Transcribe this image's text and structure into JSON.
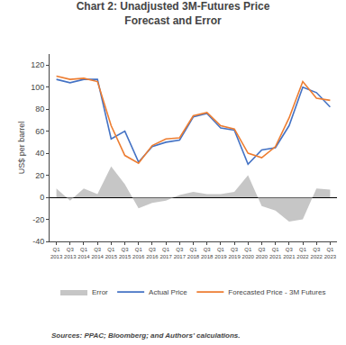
{
  "chart_data": {
    "type": "line",
    "title": "Chart 2: Unadjusted 3M-Futures Price\nForecast and Error",
    "ylabel": "US$ per barrel",
    "annotation": "Sources: PPAC; Bloomberg; and Authors' calculations.",
    "categories": [
      "Q1\n2013",
      "Q3\n2013",
      "Q1\n2014",
      "Q3\n2014",
      "Q1\n2015",
      "Q3\n2015",
      "Q1\n2016",
      "Q3\n2016",
      "Q1\n2017",
      "Q3\n2017",
      "Q1\n2018",
      "Q3\n2018",
      "Q1\n2019",
      "Q3\n2019",
      "Q1\n2020",
      "Q3\n2020",
      "Q1\n2021",
      "Q3\n2021",
      "Q1\n2022",
      "Q3\n2022",
      "Q1\n2023"
    ],
    "series": [
      {
        "name": "Error",
        "type": "area",
        "color": "#A0A0A0",
        "values": [
          8,
          -3,
          8,
          3,
          28,
          12,
          -10,
          -5,
          -3,
          2,
          5,
          3,
          3,
          5,
          20,
          -8,
          -12,
          -22,
          -20,
          8,
          7
        ]
      },
      {
        "name": "Actual Price",
        "type": "line",
        "color": "#4472C4",
        "values": [
          107,
          104,
          107,
          107,
          53,
          60,
          32,
          46,
          50,
          52,
          73,
          76,
          63,
          61,
          30,
          43,
          45,
          65,
          100,
          95,
          82
        ]
      },
      {
        "name": "Forecasted Price - 3M Futures",
        "type": "line",
        "color": "#ED7D31",
        "values": [
          110,
          107,
          108,
          105,
          65,
          38,
          31,
          47,
          53,
          54,
          74,
          77,
          65,
          62,
          40,
          36,
          46,
          72,
          105,
          90,
          88
        ]
      }
    ],
    "ylim": [
      -40,
      130
    ],
    "yticks": [
      -40,
      -20,
      0,
      20,
      40,
      60,
      80,
      100,
      120
    ],
    "grid": false,
    "legend": "bottom"
  }
}
